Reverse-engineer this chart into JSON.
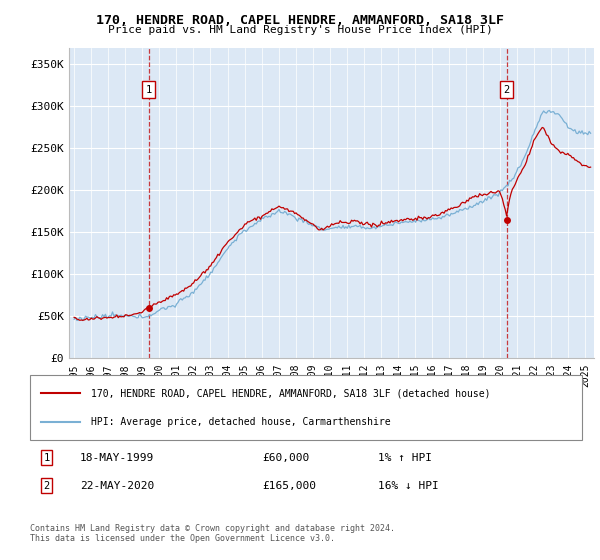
{
  "title": "170, HENDRE ROAD, CAPEL HENDRE, AMMANFORD, SA18 3LF",
  "subtitle": "Price paid vs. HM Land Registry's House Price Index (HPI)",
  "ylabel_ticks": [
    0,
    50000,
    100000,
    150000,
    200000,
    250000,
    300000,
    350000
  ],
  "ylabel_labels": [
    "£0",
    "£50K",
    "£100K",
    "£150K",
    "£200K",
    "£250K",
    "£300K",
    "£350K"
  ],
  "xlim": [
    1994.7,
    2025.5
  ],
  "ylim": [
    0,
    370000
  ],
  "plot_bg": "#dce8f5",
  "fig_bg": "#ffffff",
  "grid_color": "#ffffff",
  "red_color": "#c00000",
  "blue_color": "#7ab0d4",
  "sale1_x": 1999.37,
  "sale1_y": 60000,
  "sale2_x": 2020.38,
  "sale2_y": 165000,
  "sale1_label": "1",
  "sale2_label": "2",
  "legend_line1": "170, HENDRE ROAD, CAPEL HENDRE, AMMANFORD, SA18 3LF (detached house)",
  "legend_line2": "HPI: Average price, detached house, Carmarthenshire",
  "note1_label": "1",
  "note1_date": "18-MAY-1999",
  "note1_price": "£60,000",
  "note1_hpi": "1% ↑ HPI",
  "note2_label": "2",
  "note2_date": "22-MAY-2020",
  "note2_price": "£165,000",
  "note2_hpi": "16% ↓ HPI",
  "footer": "Contains HM Land Registry data © Crown copyright and database right 2024.\nThis data is licensed under the Open Government Licence v3.0."
}
